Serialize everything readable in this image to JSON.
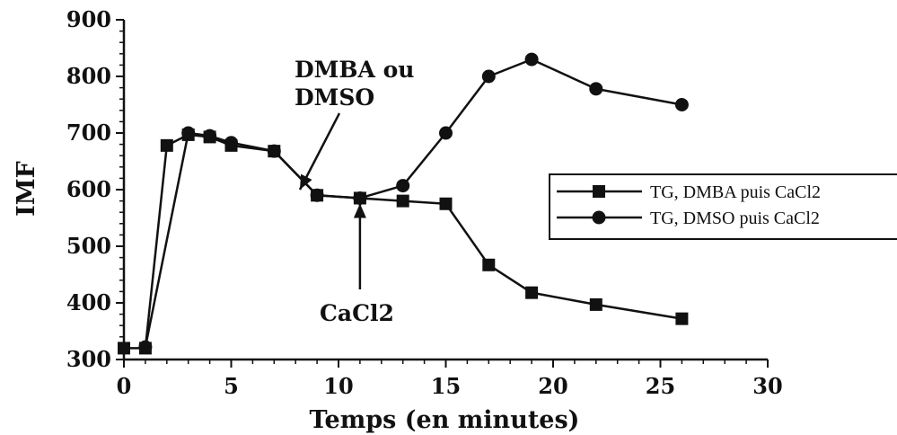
{
  "chart_data": {
    "type": "line",
    "xlabel": "Temps (en minutes)",
    "ylabel": "IMF",
    "xlim": [
      0,
      30
    ],
    "ylim": [
      300,
      900
    ],
    "x_ticks": [
      0,
      5,
      10,
      15,
      20,
      25,
      30
    ],
    "y_ticks": [
      300,
      400,
      500,
      600,
      700,
      800,
      900
    ],
    "grid": false,
    "legend_position": "right",
    "series": [
      {
        "name": "TG, DMBA puis CaCl2",
        "marker": "square",
        "x": [
          0,
          1,
          2,
          3,
          4,
          5,
          7,
          9,
          11,
          13,
          15,
          17,
          19,
          22,
          26
        ],
        "y": [
          320,
          320,
          678,
          697,
          693,
          678,
          668,
          590,
          585,
          580,
          575,
          467,
          418,
          397,
          372
        ]
      },
      {
        "name": "TG, DMSO puis CaCl2",
        "marker": "circle",
        "x": [
          1,
          3,
          4,
          5,
          7,
          9,
          11,
          13,
          15,
          17,
          19,
          22,
          26
        ],
        "y": [
          322,
          700,
          695,
          683,
          668,
          590,
          585,
          607,
          700,
          800,
          830,
          778,
          750
        ]
      }
    ],
    "annotations": [
      {
        "text": "DMBA ou\nDMSO",
        "lines": [
          "DMBA ou",
          "DMSO"
        ],
        "arrow_to": {
          "x": 8.2,
          "y": 600
        }
      },
      {
        "text": "CaCl2",
        "lines": [
          "CaCl2"
        ],
        "arrow_to": {
          "x": 11,
          "y": 585
        }
      }
    ]
  }
}
